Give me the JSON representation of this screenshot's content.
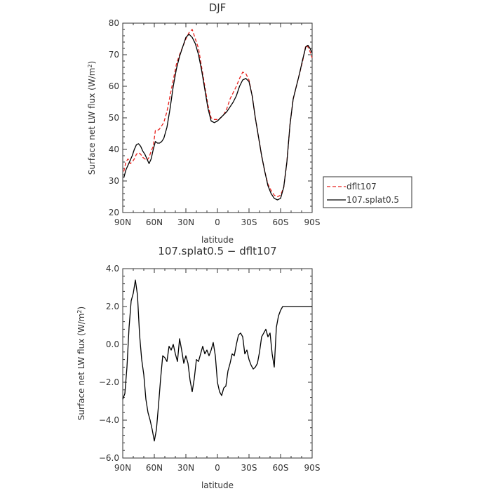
{
  "chart_data": [
    {
      "type": "line",
      "title": "DJF",
      "xlabel": "latitude",
      "ylabel": "Surface net LW flux (W/m²)",
      "ylabel_main": "Surface net LW flux (W/m",
      "ylabel_sup": "2",
      "ylabel_tail": ")",
      "xlim": [
        90,
        -90
      ],
      "ylim": [
        20,
        80
      ],
      "xticks": [
        90,
        60,
        30,
        0,
        -30,
        -60,
        -90
      ],
      "xtick_labels": [
        "90N",
        "60N",
        "30N",
        "0",
        "30S",
        "60S",
        "90S"
      ],
      "yticks": [
        20,
        30,
        40,
        50,
        60,
        70,
        80
      ],
      "ytick_labels": [
        "20",
        "30",
        "40",
        "50",
        "60",
        "70",
        "80"
      ],
      "legend_position": "right",
      "series": [
        {
          "name": "dflt107",
          "color": "#e8211d",
          "dash": "dashed",
          "x": [
            89,
            87,
            85,
            83,
            81,
            79,
            77,
            75,
            73,
            71,
            69,
            67,
            65,
            63,
            61,
            59,
            57,
            55,
            53,
            51,
            48,
            45,
            42,
            39,
            36,
            33,
            30,
            27,
            24,
            21,
            18,
            15,
            12,
            9,
            6,
            3,
            0,
            -3,
            -6,
            -9,
            -12,
            -15,
            -18,
            -21,
            -24,
            -27,
            -30,
            -33,
            -36,
            -39,
            -42,
            -45,
            -48,
            -51,
            -54,
            -57,
            -60,
            -63,
            -66,
            -69,
            -72,
            -75,
            -78,
            -81,
            -84,
            -86,
            -88,
            -90
          ],
          "y": [
            33,
            36,
            37,
            35.5,
            36,
            37,
            38.5,
            39,
            38.5,
            37.5,
            37,
            36.5,
            37.5,
            39.5,
            41,
            46,
            46,
            46.5,
            47.5,
            48.5,
            52,
            57,
            62,
            67,
            70,
            72.5,
            75,
            77,
            78,
            75,
            72,
            66,
            60,
            54,
            50,
            49.5,
            49.5,
            50,
            51,
            53,
            56,
            58,
            60,
            62.5,
            64.5,
            64,
            62,
            57,
            50,
            44,
            38,
            33,
            29,
            27,
            25.5,
            25,
            25.5,
            28,
            36,
            48,
            56,
            60,
            64,
            68,
            73,
            72.5,
            71,
            69
          ]
        },
        {
          "name": "107.splat0.5",
          "color": "#000000",
          "dash": "solid",
          "x": [
            89,
            87,
            85,
            83,
            81,
            79,
            77,
            75,
            73,
            71,
            69,
            67,
            65,
            63,
            61,
            59,
            57,
            55,
            53,
            51,
            48,
            45,
            42,
            39,
            36,
            33,
            30,
            27,
            24,
            21,
            18,
            15,
            12,
            9,
            6,
            3,
            0,
            -3,
            -6,
            -9,
            -12,
            -15,
            -18,
            -21,
            -24,
            -27,
            -30,
            -33,
            -36,
            -39,
            -42,
            -45,
            -48,
            -51,
            -54,
            -57,
            -60,
            -63,
            -66,
            -69,
            -72,
            -75,
            -78,
            -81,
            -84,
            -86,
            -88,
            -90
          ],
          "y": [
            31,
            33.5,
            35,
            36.5,
            38,
            40,
            41.5,
            41.8,
            41,
            39.5,
            38.5,
            37,
            35.5,
            37,
            40,
            42.5,
            42,
            42,
            42.5,
            43.5,
            47,
            53,
            60,
            65.5,
            69.5,
            72.5,
            75.5,
            76.5,
            75.5,
            73.5,
            70,
            65,
            59,
            53,
            49,
            48.5,
            49,
            50,
            51,
            52,
            53.5,
            55,
            57,
            60,
            62,
            62.5,
            61.5,
            57,
            50,
            44,
            38,
            33,
            28.5,
            26,
            24.5,
            24,
            24.5,
            28,
            36,
            48,
            56,
            60,
            64,
            68.5,
            72.5,
            73,
            72,
            70.5
          ]
        }
      ]
    },
    {
      "type": "line",
      "title": "107.splat0.5 − dflt107",
      "xlabel": "latitude",
      "ylabel": "Surface net LW flux (W/m²)",
      "ylabel_main": "Surface net LW flux (W/m",
      "ylabel_sup": "2",
      "ylabel_tail": ")",
      "xlim": [
        90,
        -90
      ],
      "ylim": [
        -6,
        4
      ],
      "xticks": [
        90,
        60,
        30,
        0,
        -30,
        -60,
        -90
      ],
      "xtick_labels": [
        "90N",
        "60N",
        "30N",
        "0",
        "30S",
        "60S",
        "90S"
      ],
      "yticks": [
        -6,
        -4,
        -2,
        0,
        2,
        4
      ],
      "ytick_labels": [
        "−6.0",
        "−4.0",
        "−2.0",
        "0.0",
        "2.0",
        "4.0"
      ],
      "series": [
        {
          "color": "#000000",
          "dash": "solid",
          "x": [
            90,
            88,
            86,
            84,
            82,
            80,
            78,
            76,
            74,
            72,
            70,
            68,
            66,
            64,
            62,
            60,
            58,
            56,
            54,
            52,
            50,
            48,
            46,
            44,
            42,
            40,
            38,
            36,
            34,
            32,
            30,
            28,
            26,
            24,
            22,
            20,
            18,
            16,
            14,
            12,
            10,
            8,
            6,
            4,
            2,
            0,
            -2,
            -4,
            -6,
            -8,
            -10,
            -12,
            -14,
            -16,
            -18,
            -20,
            -22,
            -24,
            -26,
            -28,
            -30,
            -32,
            -34,
            -36,
            -38,
            -40,
            -42,
            -44,
            -46,
            -48,
            -50,
            -52,
            -54,
            -56,
            -58,
            -60,
            -62,
            -64,
            -66,
            -68,
            -70,
            -72,
            -74,
            -76,
            -78,
            -80,
            -82,
            -84,
            -86,
            -88,
            -90
          ],
          "y": [
            -2.9,
            -2.6,
            -1.2,
            0.9,
            2.3,
            2.7,
            3.4,
            2.6,
            0.5,
            -0.8,
            -1.6,
            -2.9,
            -3.6,
            -4.0,
            -4.5,
            -5.1,
            -4.5,
            -3.2,
            -1.8,
            -0.6,
            -0.7,
            -0.9,
            -0.1,
            -0.3,
            0,
            -0.5,
            -0.9,
            0.3,
            -0.3,
            -1.0,
            -0.6,
            -1.0,
            -1.9,
            -2.5,
            -1.8,
            -0.8,
            -0.9,
            -0.5,
            -0.1,
            -0.5,
            -0.3,
            -0.6,
            -0.3,
            0.1,
            -0.6,
            -2.0,
            -2.5,
            -2.7,
            -2.3,
            -2.2,
            -1.4,
            -1.0,
            -0.5,
            -0.6,
            0,
            0.5,
            0.6,
            0.4,
            -0.5,
            -0.3,
            -0.8,
            -1.1,
            -1.3,
            -1.2,
            -1.0,
            -0.4,
            0.4,
            0.6,
            0.8,
            0.4,
            0.6,
            -0.5,
            -1.2,
            0.9,
            1.5,
            1.8,
            2.0,
            2.0,
            2.0,
            2.0,
            2.0,
            2.0,
            2.0,
            2.0,
            2.0,
            2.0,
            2.0,
            2.0,
            2.0,
            2.0,
            2.0
          ]
        }
      ]
    }
  ]
}
